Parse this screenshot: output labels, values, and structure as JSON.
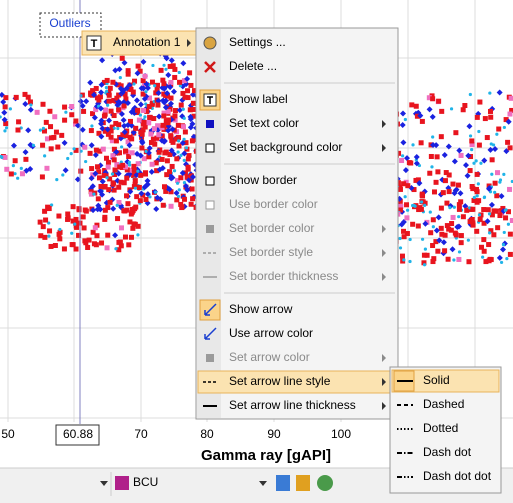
{
  "chart": {
    "annotation_label": "Outliers",
    "cursor_value": "60.88",
    "x_axis": {
      "title": "Gamma ray [gAPI]",
      "ticks": [
        "50",
        "70",
        "80",
        "90",
        "100"
      ]
    }
  },
  "toolbar": {
    "curve": "BCU"
  },
  "menu": {
    "parent": "Annotation 1",
    "groups": [
      [
        {
          "label": "Settings ...",
          "enabled": true
        },
        {
          "label": "Delete ...",
          "enabled": true
        }
      ],
      [
        {
          "label": "Show label",
          "enabled": true,
          "checked": true
        },
        {
          "label": "Set text color",
          "enabled": true,
          "submenu": true
        },
        {
          "label": "Set background color",
          "enabled": true,
          "submenu": true
        }
      ],
      [
        {
          "label": "Show border",
          "enabled": true
        },
        {
          "label": "Use border color",
          "enabled": false
        },
        {
          "label": "Set border color",
          "enabled": false,
          "submenu": true
        },
        {
          "label": "Set border style",
          "enabled": false,
          "submenu": true
        },
        {
          "label": "Set border thickness",
          "enabled": false,
          "submenu": true
        }
      ],
      [
        {
          "label": "Show arrow",
          "enabled": true,
          "checked": true
        },
        {
          "label": "Use arrow color",
          "enabled": true
        },
        {
          "label": "Set arrow color",
          "enabled": false,
          "submenu": true
        },
        {
          "label": "Set arrow line style",
          "enabled": true,
          "submenu": true,
          "highlighted": true
        },
        {
          "label": "Set arrow line thickness",
          "enabled": true,
          "submenu": true
        }
      ]
    ],
    "submenu": {
      "items": [
        {
          "label": "Solid",
          "highlighted": true
        },
        {
          "label": "Dashed"
        },
        {
          "label": "Dotted"
        },
        {
          "label": "Dash dot"
        },
        {
          "label": "Dash dot dot"
        }
      ]
    }
  }
}
